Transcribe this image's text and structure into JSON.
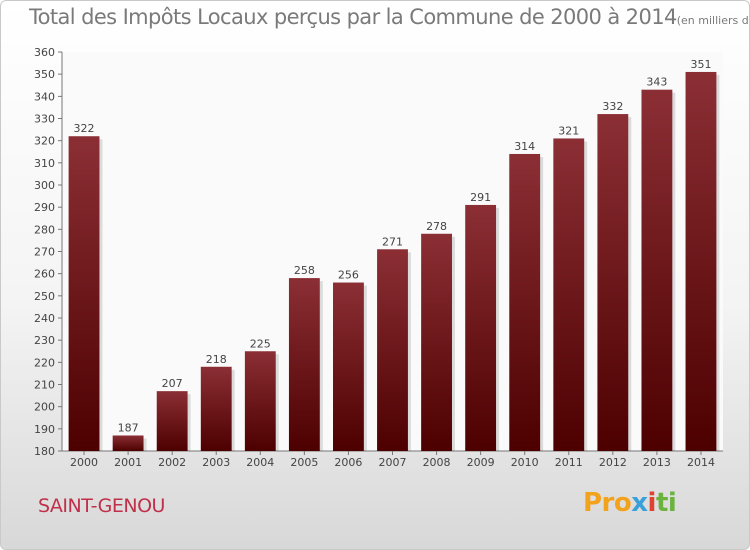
{
  "title": "Total des Impôts Locaux perçus par la Commune de 2000 à 2014",
  "unit": "(en milliers d'€)",
  "commune": "SAINT-GENOU",
  "logo": {
    "p1": "Pro",
    "p2": "x",
    "p3": "i",
    "p4": "ti"
  },
  "colors": {
    "bar_dark": "#4d0000",
    "bar_light": "#8b2f35",
    "commune": "#c0304a"
  },
  "chart_data": {
    "type": "bar",
    "categories": [
      "2000",
      "2001",
      "2002",
      "2003",
      "2004",
      "2005",
      "2006",
      "2007",
      "2008",
      "2009",
      "2010",
      "2011",
      "2012",
      "2013",
      "2014"
    ],
    "values": [
      322,
      187,
      207,
      218,
      225,
      258,
      256,
      271,
      278,
      291,
      314,
      321,
      332,
      343,
      351
    ],
    "ylim": [
      180,
      360
    ],
    "yticks": [
      180,
      190,
      200,
      210,
      220,
      230,
      240,
      250,
      260,
      270,
      280,
      290,
      300,
      310,
      320,
      330,
      340,
      350,
      360
    ],
    "grid": false,
    "legend": "none"
  }
}
